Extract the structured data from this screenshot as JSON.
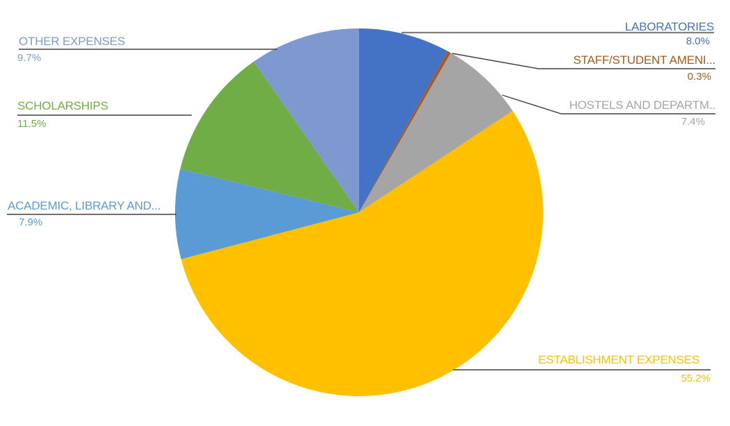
{
  "chart_data": {
    "type": "pie",
    "title": "",
    "legend": "none",
    "label_style": "outside-callouts-with-leader-lines",
    "start_angle_deg_from_top_clockwise": 0,
    "categories": [
      "LABORATORIES",
      "STAFF/STUDENT AMENI...",
      "HOSTELS AND DEPARTM..",
      "ESTABLISHMENT EXPENSES",
      "ACADEMIC, LIBRARY AND...",
      "SCHOLARSHIPS",
      "OTHER EXPENSES"
    ],
    "values": [
      8.0,
      0.3,
      7.4,
      55.2,
      7.9,
      11.5,
      9.7
    ],
    "slices": [
      {
        "label": "LABORATORIES",
        "pct": 8.0,
        "pct_label": "8.0%",
        "color": "#4472C4"
      },
      {
        "label": "STAFF/STUDENT AMENI...",
        "pct": 0.3,
        "pct_label": "0.3%",
        "color": "#A75A1B"
      },
      {
        "label": "HOSTELS AND DEPARTM..",
        "pct": 7.4,
        "pct_label": "7.4%",
        "color": "#A5A5A5"
      },
      {
        "label": "ESTABLISHMENT EXPENSES",
        "pct": 55.2,
        "pct_label": "55.2%",
        "color": "#FFC000"
      },
      {
        "label": "ACADEMIC, LIBRARY AND...",
        "pct": 7.9,
        "pct_label": "7.9%",
        "color": "#5B9BD5"
      },
      {
        "label": "SCHOLARSHIPS",
        "pct": 11.5,
        "pct_label": "11.5%",
        "color": "#70AD47"
      },
      {
        "label": "OTHER EXPENSES",
        "pct": 9.7,
        "pct_label": "9.7%",
        "color": "#7D99D0"
      }
    ],
    "leader_line_color": "#3f3f3f",
    "laboratories_leader_line_color": "#808080",
    "background_color": "#ffffff"
  }
}
